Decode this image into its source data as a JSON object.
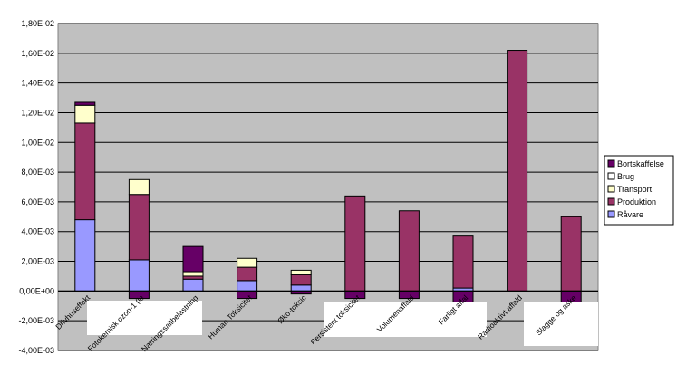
{
  "chart_data": {
    "type": "bar",
    "stacked": true,
    "categories": [
      "Drivhuseffekt",
      "Fotokemisk ozon-1 (le",
      "Næringssaltbelastning",
      "Human Toksicitet",
      "Øko-toksic",
      "Persistent toksicitet",
      "Volumenaffald",
      "Farligt affal",
      "Radioaktivt affald",
      "Slagge og aske"
    ],
    "series": [
      {
        "name": "Råvare",
        "color": "#9999ff",
        "values": [
          0.0048,
          0.0021,
          0.0008,
          0.0007,
          0.0004,
          0.0,
          0.0,
          0.0002,
          0.0,
          0.0
        ]
      },
      {
        "name": "Produktion",
        "color": "#993366",
        "values": [
          0.0065,
          0.0044,
          0.0002,
          0.0009,
          0.0007,
          0.0064,
          0.0054,
          0.0035,
          0.0162,
          0.005
        ]
      },
      {
        "name": "Transport",
        "color": "#ffffcc",
        "values": [
          0.0012,
          0.001,
          0.0003,
          0.0006,
          0.0003,
          0.0,
          0.0,
          0.0,
          0.0,
          0.0
        ]
      },
      {
        "name": "Brug",
        "color": "#ffffff",
        "values": [
          0.0,
          0.0,
          0.0,
          0.0,
          0.0,
          0.0,
          0.0,
          0.0,
          0.0,
          0.0
        ]
      },
      {
        "name": "Bortskaffelse",
        "color": "#660066",
        "values": [
          0.0002,
          -0.0005,
          0.0017,
          -0.0005,
          -0.0002,
          -0.0005,
          -0.0005,
          -0.0013,
          0.0,
          -0.0008
        ]
      }
    ],
    "ylim": [
      -0.004,
      0.018
    ],
    "yticks": [
      "-4,00E-03",
      "-2,00E-03",
      "0,00E+00",
      "2,00E-03",
      "4,00E-03",
      "6,00E-03",
      "8,00E-03",
      "1,00E-02",
      "1,20E-02",
      "1,40E-02",
      "1,60E-02",
      "1,80E-02"
    ],
    "grid": true,
    "legend_position": "right",
    "legend_order": [
      "Bortskaffelse",
      "Brug",
      "Transport",
      "Produktion",
      "Råvare"
    ],
    "plot_background": "#c0c0c0"
  }
}
